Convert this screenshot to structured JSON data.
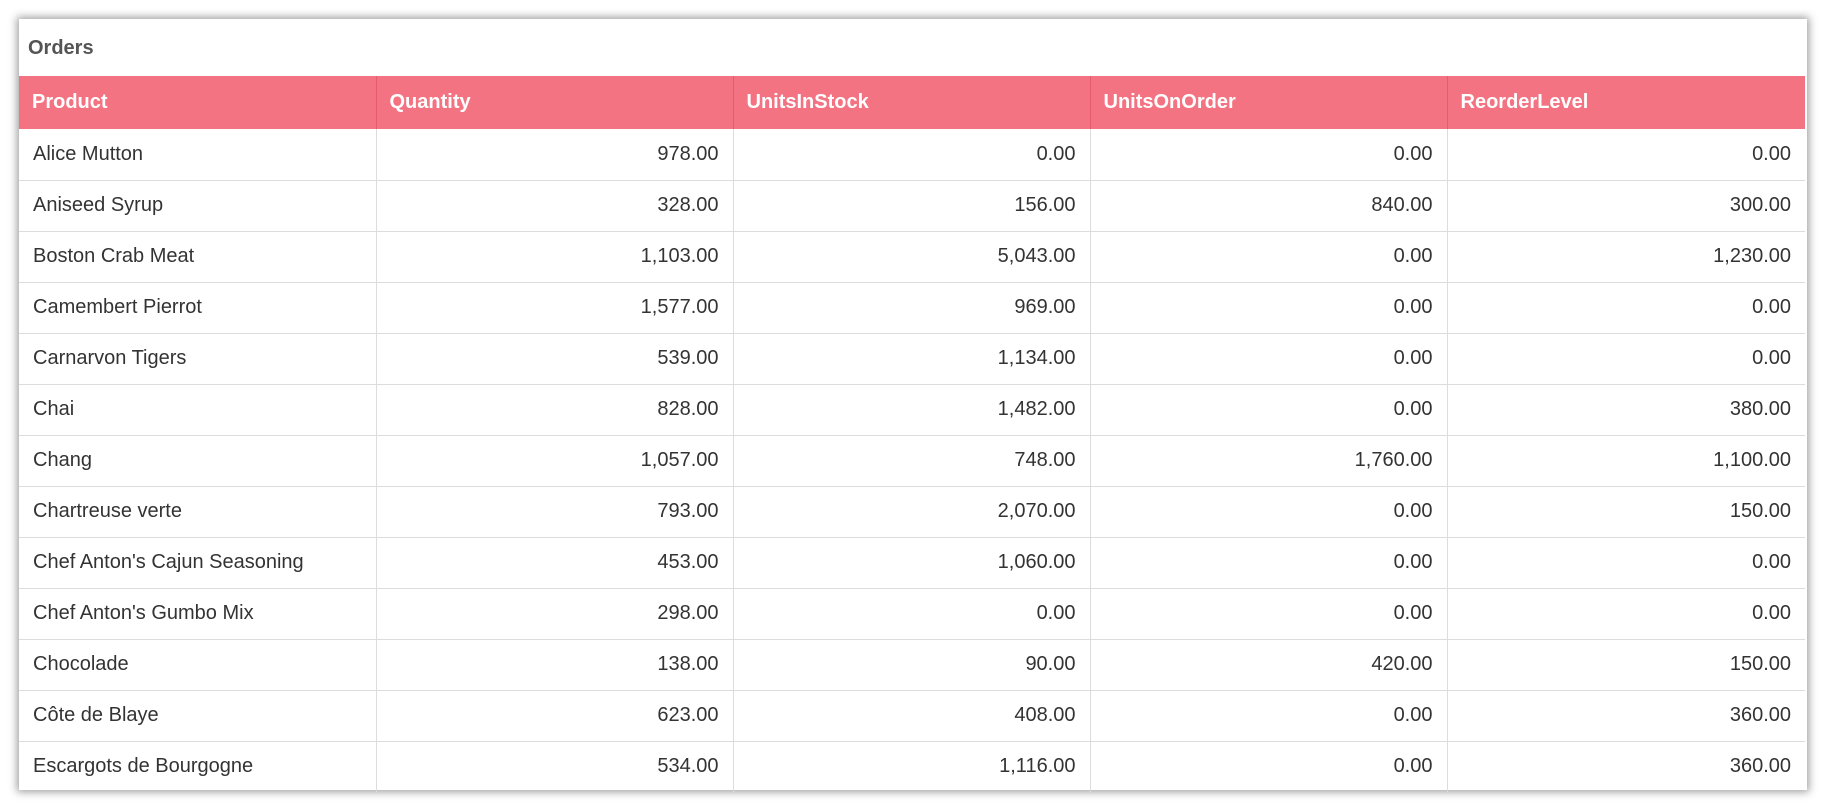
{
  "panel": {
    "title": "Orders"
  },
  "colors": {
    "header_background": "#f47382",
    "header_text": "#ffffff",
    "grid_line": "#dcdcdc"
  },
  "table": {
    "columns": [
      "Product",
      "Quantity",
      "UnitsInStock",
      "UnitsOnOrder",
      "ReorderLevel"
    ],
    "rows": [
      [
        "Alice Mutton",
        "978.00",
        "0.00",
        "0.00",
        "0.00"
      ],
      [
        "Aniseed Syrup",
        "328.00",
        "156.00",
        "840.00",
        "300.00"
      ],
      [
        "Boston Crab Meat",
        "1,103.00",
        "5,043.00",
        "0.00",
        "1,230.00"
      ],
      [
        "Camembert Pierrot",
        "1,577.00",
        "969.00",
        "0.00",
        "0.00"
      ],
      [
        "Carnarvon Tigers",
        "539.00",
        "1,134.00",
        "0.00",
        "0.00"
      ],
      [
        "Chai",
        "828.00",
        "1,482.00",
        "0.00",
        "380.00"
      ],
      [
        "Chang",
        "1,057.00",
        "748.00",
        "1,760.00",
        "1,100.00"
      ],
      [
        "Chartreuse verte",
        "793.00",
        "2,070.00",
        "0.00",
        "150.00"
      ],
      [
        "Chef Anton's Cajun Seasoning",
        "453.00",
        "1,060.00",
        "0.00",
        "0.00"
      ],
      [
        "Chef Anton's Gumbo Mix",
        "298.00",
        "0.00",
        "0.00",
        "0.00"
      ],
      [
        "Chocolade",
        "138.00",
        "90.00",
        "420.00",
        "150.00"
      ],
      [
        "Côte de Blaye",
        "623.00",
        "408.00",
        "0.00",
        "360.00"
      ],
      [
        "Escargots de Bourgogne",
        "534.00",
        "1,116.00",
        "0.00",
        "360.00"
      ]
    ]
  }
}
